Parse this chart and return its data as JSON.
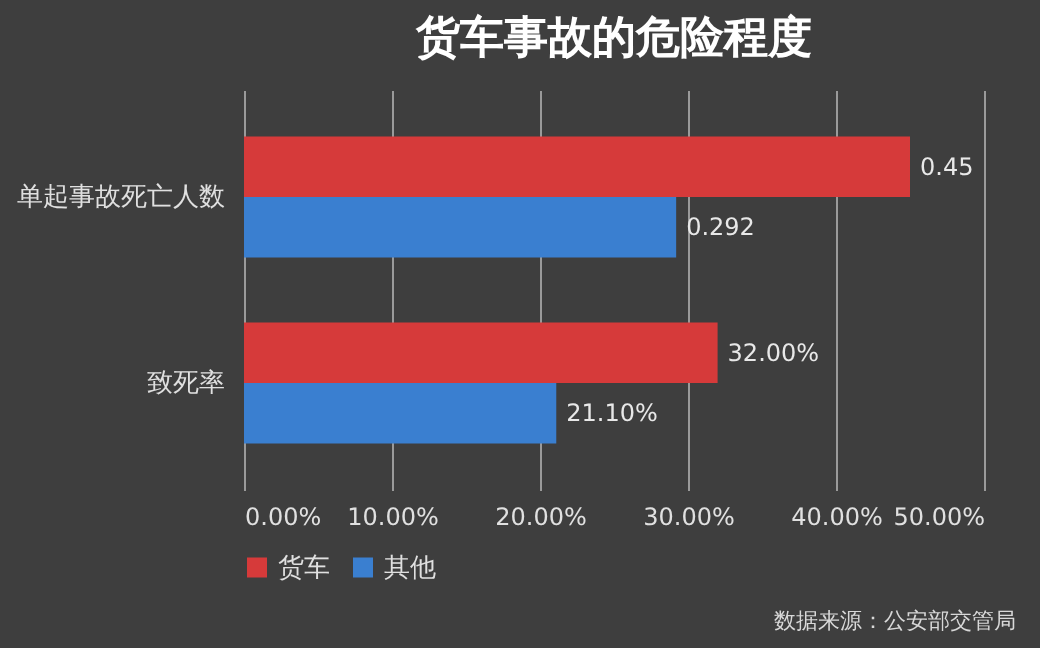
{
  "chart_data": {
    "type": "bar",
    "orientation": "horizontal",
    "title": "货车事故的危险程度",
    "categories": [
      "单起事故死亡人数",
      "致死率"
    ],
    "series": [
      {
        "name": "货车",
        "color": "#d63a3a",
        "values": [
          0.45,
          0.32
        ],
        "value_labels": [
          "0.45",
          "32.00%"
        ]
      },
      {
        "name": "其他",
        "color": "#3a7fd0",
        "values": [
          0.292,
          0.211
        ],
        "value_labels": [
          "0.292",
          "21.10%"
        ]
      }
    ],
    "xlim": [
      0,
      0.5
    ],
    "xticks": [
      {
        "value": 0,
        "label": "0.00%"
      },
      {
        "value": 0.1,
        "label": "10.00%"
      },
      {
        "value": 0.2,
        "label": "20.00%"
      },
      {
        "value": 0.3,
        "label": "30.00%"
      },
      {
        "value": 0.4,
        "label": "40.00%"
      },
      {
        "value": 0.5,
        "label": "50.00%"
      }
    ],
    "grid": "x",
    "legend": "bottom left",
    "annotations": [
      "数据来源：公安部交管局"
    ]
  }
}
